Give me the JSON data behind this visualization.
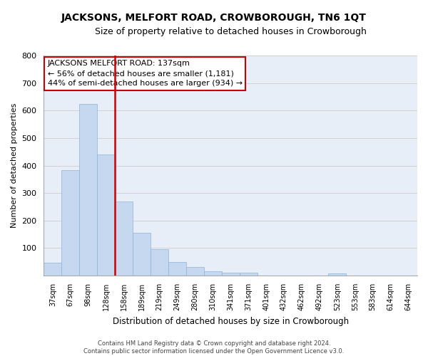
{
  "title": "JACKSONS, MELFORT ROAD, CROWBOROUGH, TN6 1QT",
  "subtitle": "Size of property relative to detached houses in Crowborough",
  "xlabel": "Distribution of detached houses by size in Crowborough",
  "ylabel": "Number of detached properties",
  "categories": [
    "37sqm",
    "67sqm",
    "98sqm",
    "128sqm",
    "158sqm",
    "189sqm",
    "219sqm",
    "249sqm",
    "280sqm",
    "310sqm",
    "341sqm",
    "371sqm",
    "401sqm",
    "432sqm",
    "462sqm",
    "492sqm",
    "523sqm",
    "553sqm",
    "583sqm",
    "614sqm",
    "644sqm"
  ],
  "values": [
    48,
    383,
    625,
    440,
    270,
    155,
    95,
    50,
    30,
    15,
    10,
    10,
    0,
    0,
    0,
    0,
    8,
    0,
    0,
    0,
    0
  ],
  "highlight_index": 3,
  "bar_color": "#c5d8f0",
  "bar_edge_color": "#8ab4d8",
  "highlight_line_color": "#cc0000",
  "annotation_text": "JACKSONS MELFORT ROAD: 137sqm\n← 56% of detached houses are smaller (1,181)\n44% of semi-detached houses are larger (934) →",
  "annotation_box_color": "#ffffff",
  "annotation_box_edge": "#cc0000",
  "footer": "Contains HM Land Registry data © Crown copyright and database right 2024.\nContains public sector information licensed under the Open Government Licence v3.0.",
  "ylim": [
    0,
    800
  ],
  "yticks": [
    0,
    100,
    200,
    300,
    400,
    500,
    600,
    700,
    800
  ],
  "grid_color": "#cccccc",
  "background_color": "#e8eef8",
  "fig_background": "#ffffff",
  "figsize": [
    6.0,
    5.0
  ],
  "dpi": 100
}
